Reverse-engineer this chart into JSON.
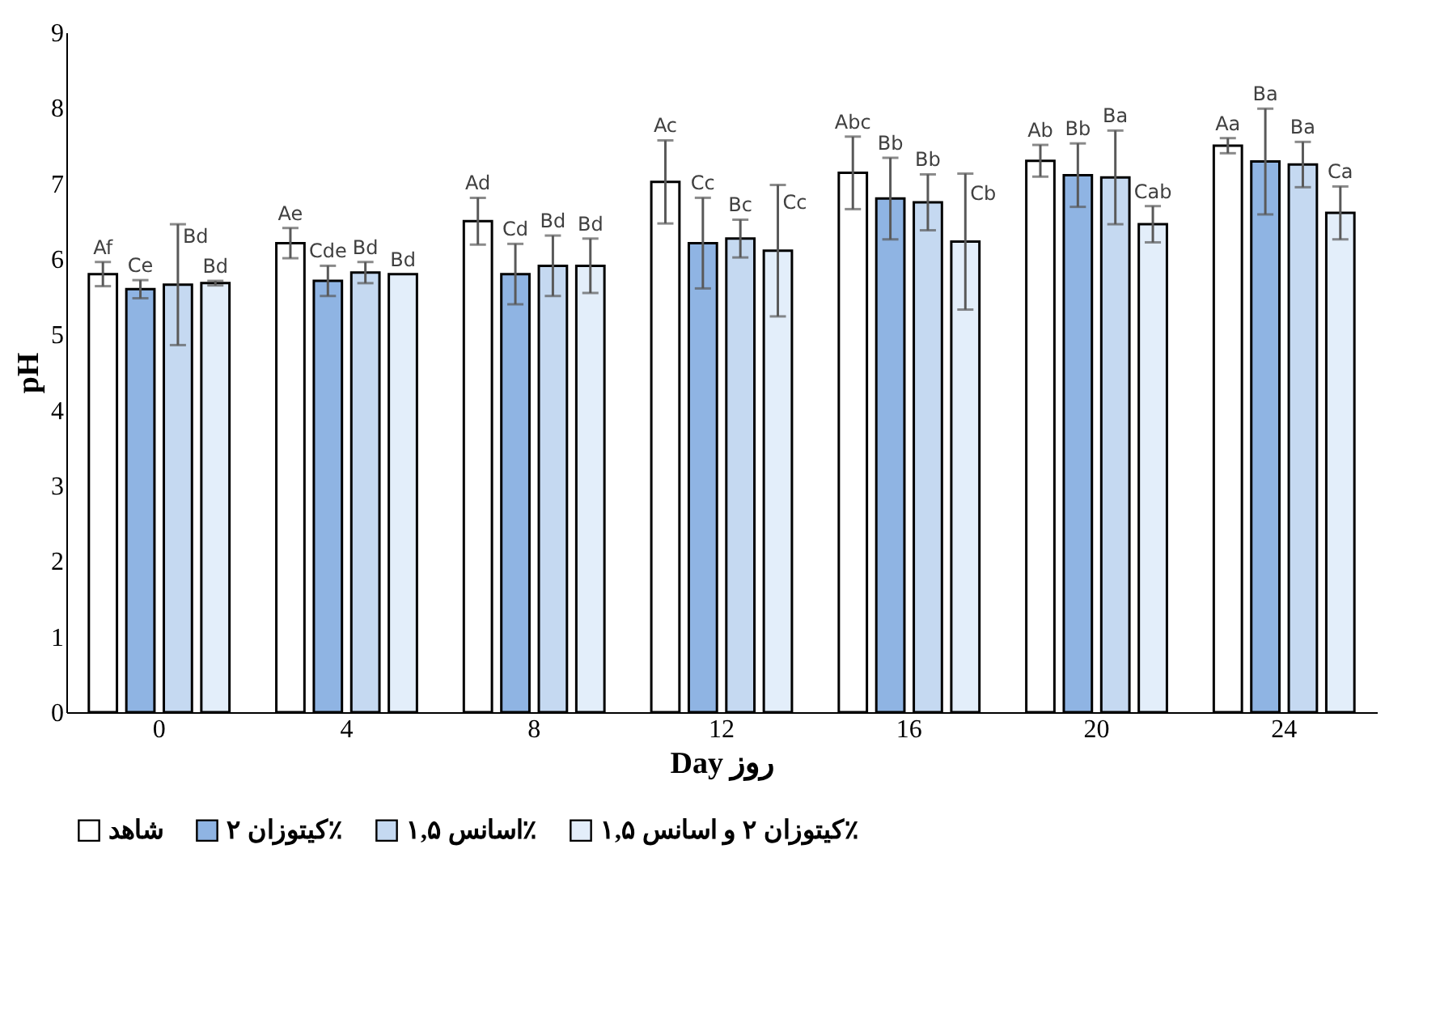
{
  "chart_data": {
    "type": "bar",
    "xlabel": "Day روز",
    "ylabel": "pH",
    "categories": [
      "0",
      "4",
      "8",
      "12",
      "16",
      "20",
      "24"
    ],
    "ylim": [
      0,
      9
    ],
    "yticks": [
      0,
      1,
      2,
      3,
      4,
      5,
      6,
      7,
      8,
      9
    ],
    "grid": false,
    "legend": "bottom",
    "series": [
      {
        "name": "شاهد",
        "color": "#ffffff",
        "values": [
          5.8,
          6.21,
          6.5,
          7.02,
          7.14,
          7.3,
          7.5
        ],
        "errors": [
          0.16,
          0.2,
          0.31,
          0.55,
          0.48,
          0.21,
          0.1
        ],
        "value_labels": [
          "Af",
          "Ae",
          "Ad",
          "Ac",
          "Abc",
          "Ab",
          "Aa"
        ]
      },
      {
        "name": "کیتوزان ۲٪",
        "color": "#8fb4e3",
        "values": [
          5.6,
          5.71,
          5.8,
          6.21,
          6.8,
          7.11,
          7.29
        ],
        "errors": [
          0.12,
          0.2,
          0.4,
          0.6,
          0.54,
          0.42,
          0.7
        ],
        "value_labels": [
          "Ce",
          "Cde",
          "Cd",
          "Cc",
          "Bb",
          "Bb",
          "Ba"
        ]
      },
      {
        "name": "اسانس ۱,۵٪",
        "color": "#c5d9f1",
        "values": [
          5.66,
          5.82,
          5.91,
          6.27,
          6.75,
          7.08,
          7.25
        ],
        "errors": [
          0.8,
          0.14,
          0.4,
          0.25,
          0.37,
          0.62,
          0.3
        ],
        "value_labels": [
          "Bd",
          "Bd",
          "Bd",
          "Bc",
          "Bb",
          "Ba",
          "Ba"
        ]
      },
      {
        "name": "کیتوزان ۲ و اسانس ۱,۵٪",
        "color": "#e3eefa",
        "values": [
          5.68,
          5.8,
          5.91,
          6.11,
          6.23,
          6.46,
          6.61
        ],
        "errors": [
          0.03,
          null,
          0.36,
          0.87,
          0.9,
          0.24,
          0.35
        ],
        "value_labels": [
          "Bd",
          "Bd",
          "Bd",
          "Cc",
          "Cb",
          "Cab",
          "Ca"
        ]
      }
    ]
  }
}
